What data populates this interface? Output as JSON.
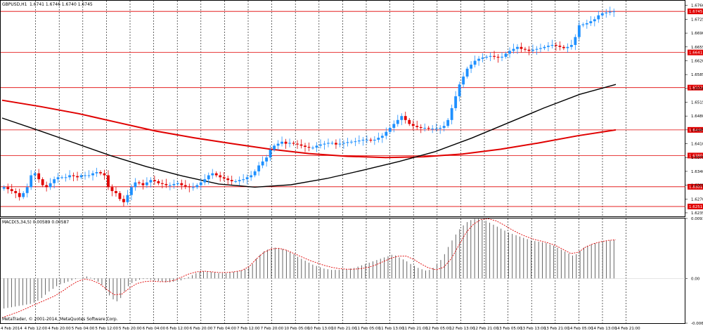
{
  "header": {
    "symbol_label": "GBPUSD,H1",
    "ohlc_values": "1.6741 1.6746 1.6740 1.6745",
    "indicator_label": "MACD(5,34,5) 0.00589 0.00587",
    "copyright": "MetaTrader, © 2001-2014, MetaQuotes Software Corp."
  },
  "colors": {
    "background": "#ffffff",
    "bull": "#1e90ff",
    "bear": "#e00000",
    "hline": "#e00000",
    "ma_slow": "#e00000",
    "ma_fast": "#000000",
    "macd_hist": "#555555",
    "macd_signal": "#e00000"
  },
  "chart_data": [
    {
      "type": "candlestick",
      "title": "GBPUSD,H1",
      "x_labels": [
        "4 Feb 2014",
        "4 Feb 12:00",
        "4 Feb 20:00",
        "5 Feb 04:00",
        "5 Feb 12:00",
        "5 Feb 20:00",
        "6 Feb 04:00",
        "6 Feb 12:00",
        "6 Feb 20:00",
        "7 Feb 04:00",
        "7 Feb 12:00",
        "7 Feb 20:00",
        "10 Feb 05:00",
        "10 Feb 13:00",
        "10 Feb 21:00",
        "11 Feb 05:00",
        "11 Feb 13:00",
        "11 Feb 21:00",
        "12 Feb 05:00",
        "12 Feb 13:00",
        "12 Feb 21:00",
        "13 Feb 05:00",
        "13 Feb 13:00",
        "13 Feb 21:00",
        "14 Feb 05:00",
        "14 Feb 13:00",
        "14 Feb 21:00"
      ],
      "y_ticks": [
        "1.6760",
        "1.6725",
        "1.6690",
        "1.6655",
        "1.6620",
        "1.6585",
        "1.6550",
        "1.6515",
        "1.6480",
        "1.6445",
        "1.6410",
        "1.6375",
        "1.6340",
        "1.6305",
        "1.6270",
        "1.6235"
      ],
      "ylim": [
        1.6226,
        1.6772
      ],
      "horizontal_levels": [
        {
          "value": 1.6745,
          "label": "1.6745"
        },
        {
          "value": 1.6641,
          "label": "1.6641"
        },
        {
          "value": 1.6552,
          "label": "1.6552"
        },
        {
          "value": 1.6445,
          "label": "1.6445"
        },
        {
          "value": 1.638,
          "label": "1.6380"
        },
        {
          "value": 1.6301,
          "label": "1.6301"
        },
        {
          "value": 1.6251,
          "label": "1.6251"
        }
      ],
      "candle_closes": [
        1.63,
        1.6295,
        1.629,
        1.6285,
        1.6275,
        1.6285,
        1.63,
        1.633,
        1.6335,
        1.632,
        1.6305,
        1.63,
        1.631,
        1.632,
        1.6325,
        1.6325,
        1.6325,
        1.633,
        1.6328,
        1.6325,
        1.633,
        1.633,
        1.633,
        1.6335,
        1.6338,
        1.6335,
        1.633,
        1.63,
        1.629,
        1.6285,
        1.627,
        1.6262,
        1.628,
        1.63,
        1.6312,
        1.631,
        1.6305,
        1.6312,
        1.6318,
        1.6315,
        1.631,
        1.6308,
        1.6305,
        1.6305,
        1.6308,
        1.631,
        1.6305,
        1.6302,
        1.63,
        1.63,
        1.6305,
        1.6312,
        1.632,
        1.633,
        1.6335,
        1.633,
        1.6325,
        1.6322,
        1.6318,
        1.6315,
        1.6315,
        1.6318,
        1.632,
        1.6325,
        1.633,
        1.634,
        1.6355,
        1.6365,
        1.6375,
        1.6395,
        1.6405,
        1.641,
        1.6415,
        1.641,
        1.6412,
        1.641,
        1.6408,
        1.6405,
        1.6402,
        1.64,
        1.64,
        1.6405,
        1.6408,
        1.641,
        1.6412,
        1.6412,
        1.6408,
        1.641,
        1.6412,
        1.6414,
        1.6415,
        1.6416,
        1.6418,
        1.642,
        1.642,
        1.6418,
        1.642,
        1.6425,
        1.643,
        1.644,
        1.645,
        1.646,
        1.647,
        1.648,
        1.647,
        1.646,
        1.6455,
        1.6452,
        1.645,
        1.645,
        1.6448,
        1.6448,
        1.6448,
        1.645,
        1.6455,
        1.647,
        1.65,
        1.653,
        1.656,
        1.658,
        1.66,
        1.661,
        1.662,
        1.6625,
        1.6628,
        1.663,
        1.6632,
        1.663,
        1.6628,
        1.663,
        1.6638,
        1.6645,
        1.665,
        1.6655,
        1.665,
        1.6648,
        1.6645,
        1.6648,
        1.665,
        1.6652,
        1.6655,
        1.6658,
        1.666,
        1.6658,
        1.6655,
        1.6652,
        1.6655,
        1.666,
        1.668,
        1.671,
        1.6712,
        1.6715,
        1.672,
        1.6725,
        1.6735,
        1.674,
        1.6742,
        1.6744,
        1.6745
      ],
      "moving_averages": [
        {
          "color": "#e00000",
          "values": [
            1.652,
            1.6504,
            1.6486,
            1.6464,
            1.6442,
            1.6425,
            1.641,
            1.6396,
            1.6385,
            1.6378,
            1.6375,
            1.6377,
            1.6384,
            1.6396,
            1.6412,
            1.643,
            1.6445
          ]
        },
        {
          "color": "#000000",
          "values": [
            1.6475,
            1.6444,
            1.6412,
            1.638,
            1.6352,
            1.6328,
            1.6308,
            1.63,
            1.6306,
            1.6322,
            1.6343,
            1.6365,
            1.639,
            1.6424,
            1.6462,
            1.65,
            1.6535,
            1.656
          ]
        }
      ]
    },
    {
      "type": "bar",
      "title": "MACD(5,34,5) 0.00589 0.00587",
      "y_ticks": [
        "0.00915",
        "0.00",
        "-0.00684"
      ],
      "ylim": [
        -0.00684,
        0.00915
      ],
      "histogram": [
        -0.0046,
        -0.0045,
        -0.0044,
        -0.0043,
        -0.0042,
        -0.0041,
        -0.004,
        -0.0039,
        -0.0037,
        -0.0034,
        -0.003,
        -0.0025,
        -0.002,
        -0.0016,
        -0.0012,
        -0.0009,
        -0.0007,
        -0.0005,
        -0.0003,
        -0.0001,
        0.0,
        0.0002,
        0.0003,
        0.0001,
        -0.0002,
        -0.0005,
        -0.001,
        -0.0018,
        -0.0026,
        -0.0032,
        -0.0035,
        -0.003,
        -0.002,
        -0.0012,
        -0.0007,
        -0.0004,
        -0.0002,
        -0.0001,
        -0.0001,
        -0.0002,
        -0.0003,
        -0.0004,
        -0.0005,
        -0.0006,
        -0.0006,
        -0.0005,
        -0.0004,
        -0.0003,
        -0.0001,
        0.0002,
        0.0005,
        0.0008,
        0.001,
        0.0011,
        0.0011,
        0.001,
        0.0009,
        0.0008,
        0.0008,
        0.0008,
        0.0009,
        0.001,
        0.0011,
        0.0012,
        0.0014,
        0.0017,
        0.0022,
        0.003,
        0.0036,
        0.0041,
        0.0044,
        0.0046,
        0.0047,
        0.0046,
        0.0045,
        0.0043,
        0.004,
        0.0037,
        0.0033,
        0.003,
        0.0027,
        0.0024,
        0.0021,
        0.0019,
        0.0017,
        0.0015,
        0.0014,
        0.0013,
        0.0013,
        0.0013,
        0.0014,
        0.0014,
        0.0015,
        0.0016,
        0.0018,
        0.002,
        0.0022,
        0.0024,
        0.0026,
        0.0028,
        0.003,
        0.0032,
        0.0034,
        0.0036,
        0.0035,
        0.0032,
        0.0029,
        0.0026,
        0.0022,
        0.0019,
        0.0016,
        0.0014,
        0.0012,
        0.0013,
        0.0016,
        0.0021,
        0.0028,
        0.0037,
        0.0048,
        0.0058,
        0.0067,
        0.0075,
        0.0081,
        0.0086,
        0.0089,
        0.0091,
        0.0091,
        0.009,
        0.0088,
        0.0085,
        0.0082,
        0.0079,
        0.0076,
        0.0073,
        0.007,
        0.0068,
        0.0066,
        0.0064,
        0.0062,
        0.006,
        0.0058,
        0.0057,
        0.0056,
        0.0055,
        0.0054,
        0.0052,
        0.005,
        0.0047,
        0.0044,
        0.0041,
        0.0038,
        0.0035,
        0.0037,
        0.0042,
        0.0047,
        0.005,
        0.0052,
        0.0054,
        0.0055,
        0.0056,
        0.0057,
        0.0058,
        0.0059
      ],
      "signal": [
        -0.006,
        -0.0056,
        -0.0052,
        -0.0047,
        -0.0042,
        -0.0037,
        -0.0032,
        -0.0027,
        -0.002,
        -0.0012,
        -0.0005,
        -0.0001,
        -0.0003,
        -0.0008,
        -0.0017,
        -0.0025,
        -0.0024,
        -0.0015,
        -0.0008,
        -0.0005,
        -0.0004,
        -0.0005,
        -0.0005,
        -0.0003,
        0.0002,
        0.0007,
        0.001,
        0.0011,
        0.001,
        0.0009,
        0.0009,
        0.001,
        0.0012,
        0.0018,
        0.003,
        0.004,
        0.0045,
        0.0046,
        0.0043,
        0.0038,
        0.0033,
        0.0028,
        0.0024,
        0.002,
        0.0017,
        0.0015,
        0.0014,
        0.0014,
        0.0015,
        0.0017,
        0.0021,
        0.0026,
        0.0031,
        0.0034,
        0.0034,
        0.0029,
        0.0022,
        0.0016,
        0.0013,
        0.0017,
        0.003,
        0.005,
        0.007,
        0.0083,
        0.009,
        0.0091,
        0.0088,
        0.0082,
        0.0075,
        0.0069,
        0.0064,
        0.006,
        0.0057,
        0.0054,
        0.005,
        0.0044,
        0.0038,
        0.004,
        0.0048,
        0.0053,
        0.0056,
        0.0058,
        0.0059
      ]
    }
  ]
}
